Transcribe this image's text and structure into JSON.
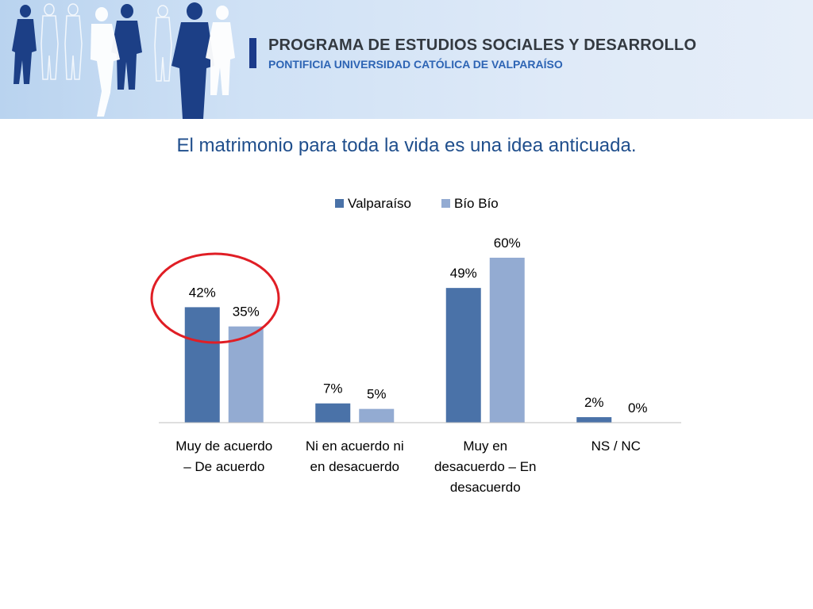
{
  "header": {
    "title": "PROGRAMA DE ESTUDIOS SOCIALES Y DESARROLLO",
    "subtitle": "PONTIFICIA UNIVERSIDAD CATÓLICA DE VALPARAÍSO"
  },
  "colors": {
    "valparaiso": "#4a72a8",
    "biobio": "#93abd2",
    "highlight_circle": "#e01e25",
    "title": "#1f4e8c"
  },
  "chart_data": {
    "type": "bar",
    "title": "El matrimonio para toda la vida es una idea anticuada.",
    "categories": [
      [
        "Muy de acuerdo",
        "– De acuerdo"
      ],
      [
        "Ni en acuerdo ni",
        "en desacuerdo"
      ],
      [
        "Muy en",
        "desacuerdo – En",
        "desacuerdo"
      ],
      [
        "NS / NC"
      ]
    ],
    "series": [
      {
        "name": "Valparaíso",
        "values": [
          42,
          7,
          49,
          2
        ],
        "labels": [
          "42%",
          "7%",
          "49%",
          "2%"
        ]
      },
      {
        "name": "Bío Bío",
        "values": [
          35,
          5,
          60,
          0
        ],
        "labels": [
          "35%",
          "5%",
          "60%",
          "0%"
        ]
      }
    ],
    "ylim": [
      0,
      70
    ],
    "grid": false,
    "legend": "top",
    "highlight": "Muy de acuerdo – De acuerdo"
  }
}
